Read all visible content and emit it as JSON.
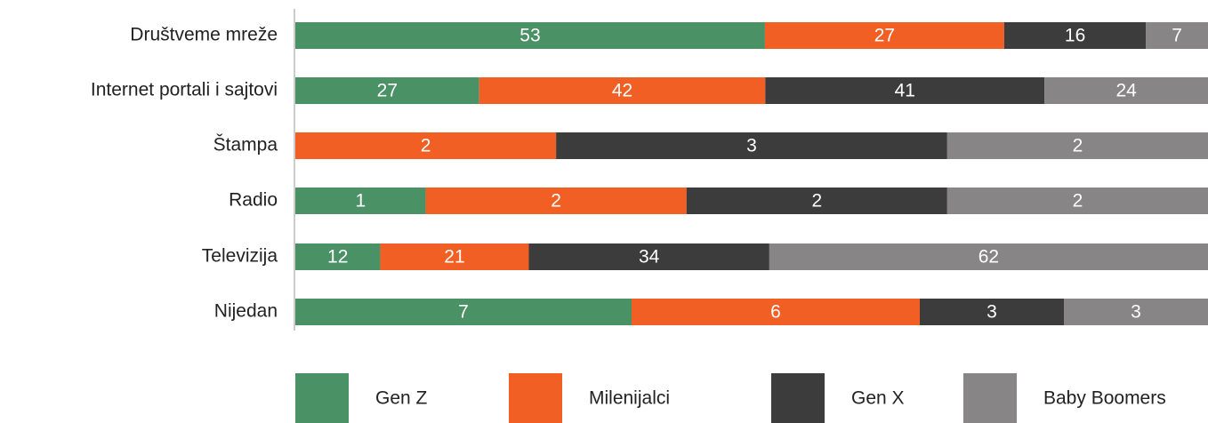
{
  "chart_data": {
    "type": "stacked-bar-percent",
    "categories": [
      "Društveme mreže",
      "Internet portali i sajtovi",
      "Štampa",
      "Radio",
      "Televizija",
      "Nijedan"
    ],
    "series": [
      {
        "name": "Gen Z",
        "color": "#4a9265",
        "values": [
          53,
          27,
          null,
          1,
          12,
          7
        ]
      },
      {
        "name": "Milenijalci",
        "color": "#f15f25",
        "values": [
          27,
          42,
          2,
          2,
          21,
          6
        ]
      },
      {
        "name": "Gen X",
        "color": "#3c3c3c",
        "values": [
          16,
          41,
          3,
          2,
          34,
          3
        ]
      },
      {
        "name": "Baby Boomers",
        "color": "#878585",
        "values": [
          7,
          24,
          2,
          2,
          62,
          3
        ]
      }
    ]
  }
}
